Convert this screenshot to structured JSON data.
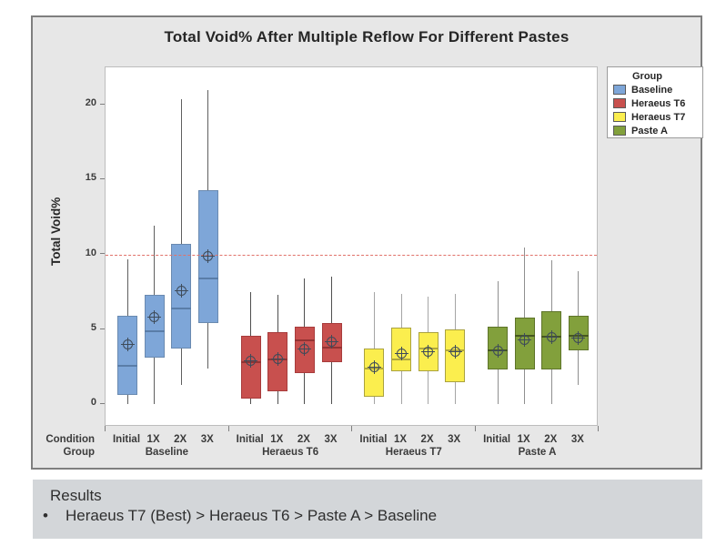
{
  "title": "Total Void% After Multiple Reflow For Different Pastes",
  "y_axis": {
    "label": "Total Void%"
  },
  "x_axis": {
    "row1_header": "Condition",
    "row2_header": "Group"
  },
  "legend": {
    "title": "Group",
    "entries": [
      {
        "label": "Baseline",
        "color": "#7ea6d8"
      },
      {
        "label": "Heraeus T6",
        "color": "#c8504e"
      },
      {
        "label": "Heraeus T7",
        "color": "#fbee4e"
      },
      {
        "label": "Paste A",
        "color": "#82a03c"
      }
    ]
  },
  "results": {
    "header": "Results",
    "bullet": "•",
    "text": "Heraeus T7 (Best) > Heraeus T6 > Paste A > Baseline"
  },
  "chart_data": {
    "type": "boxplot",
    "title": "Total Void% After Multiple Reflow For Different Pastes",
    "xlabel": "",
    "ylabel": "Total Void%",
    "ylim": [
      -1.5,
      22.5
    ],
    "yticks": [
      0,
      5,
      10,
      15,
      20
    ],
    "grid": false,
    "legend_position": "right",
    "reference_line": {
      "value": 10,
      "color": "#e0726a",
      "style": "dashed"
    },
    "conditions": [
      "Initial",
      "1X",
      "2X",
      "3X"
    ],
    "groups": [
      {
        "name": "Baseline",
        "fill": "#7ea6d8",
        "border": "#6a8ab0",
        "median_color": "#5a7da8",
        "whisker_color": "#5f5f5f",
        "boxes": [
          {
            "condition": "Initial",
            "whisker_low": 0,
            "q1": 0.6,
            "median": 2.6,
            "q3": 5.9,
            "whisker_high": 9.7,
            "mean": 4.0
          },
          {
            "condition": "1X",
            "whisker_low": 0,
            "q1": 3.1,
            "median": 4.9,
            "q3": 7.3,
            "whisker_high": 11.9,
            "mean": 5.8
          },
          {
            "condition": "2X",
            "whisker_low": 1.3,
            "q1": 3.7,
            "median": 6.4,
            "q3": 10.7,
            "whisker_high": 20.4,
            "mean": 7.6
          },
          {
            "condition": "3X",
            "whisker_low": 2.4,
            "q1": 5.4,
            "median": 8.4,
            "q3": 14.3,
            "whisker_high": 21.0,
            "mean": 9.9
          }
        ]
      },
      {
        "name": "Heraeus T6",
        "fill": "#c8504e",
        "border": "#a83c3c",
        "median_color": "#933333",
        "whisker_color": "#4f4f4f",
        "boxes": [
          {
            "condition": "Initial",
            "whisker_low": 0,
            "q1": 0.4,
            "median": 2.8,
            "q3": 4.6,
            "whisker_high": 7.5,
            "mean": 2.9
          },
          {
            "condition": "1X",
            "whisker_low": 0,
            "q1": 0.9,
            "median": 3.0,
            "q3": 4.8,
            "whisker_high": 7.3,
            "mean": 3.0
          },
          {
            "condition": "2X",
            "whisker_low": 0,
            "q1": 2.1,
            "median": 4.3,
            "q3": 5.2,
            "whisker_high": 8.4,
            "mean": 3.7
          },
          {
            "condition": "3X",
            "whisker_low": 0,
            "q1": 2.8,
            "median": 3.8,
            "q3": 5.4,
            "whisker_high": 8.5,
            "mean": 4.2
          }
        ]
      },
      {
        "name": "Heraeus T7",
        "fill": "#fbee4e",
        "border": "#aaa23f",
        "median_color": "#b0a83c",
        "whisker_color": "#a5a5a5",
        "boxes": [
          {
            "condition": "Initial",
            "whisker_low": 0,
            "q1": 0.5,
            "median": 2.4,
            "q3": 3.7,
            "whisker_high": 7.5,
            "mean": 2.5
          },
          {
            "condition": "1X",
            "whisker_low": 0,
            "q1": 2.2,
            "median": 3.0,
            "q3": 5.1,
            "whisker_high": 7.4,
            "mean": 3.4
          },
          {
            "condition": "2X",
            "whisker_low": 0,
            "q1": 2.2,
            "median": 3.7,
            "q3": 4.8,
            "whisker_high": 7.2,
            "mean": 3.5
          },
          {
            "condition": "3X",
            "whisker_low": 0,
            "q1": 1.5,
            "median": 3.6,
            "q3": 5.0,
            "whisker_high": 7.4,
            "mean": 3.5
          }
        ]
      },
      {
        "name": "Paste A",
        "fill": "#82a03c",
        "border": "#5e7429",
        "median_color": "#46571f",
        "whisker_color": "#8f8f8f",
        "boxes": [
          {
            "condition": "Initial",
            "whisker_low": 0,
            "q1": 2.3,
            "median": 3.6,
            "q3": 5.2,
            "whisker_high": 8.2,
            "mean": 3.6
          },
          {
            "condition": "1X",
            "whisker_low": 0,
            "q1": 2.3,
            "median": 4.6,
            "q3": 5.8,
            "whisker_high": 10.5,
            "mean": 4.3
          },
          {
            "condition": "2X",
            "whisker_low": 0,
            "q1": 2.3,
            "median": 4.5,
            "q3": 6.2,
            "whisker_high": 9.6,
            "mean": 4.5
          },
          {
            "condition": "3X",
            "whisker_low": 1.3,
            "q1": 3.6,
            "median": 4.6,
            "q3": 5.9,
            "whisker_high": 8.9,
            "mean": 4.4
          }
        ]
      }
    ]
  }
}
